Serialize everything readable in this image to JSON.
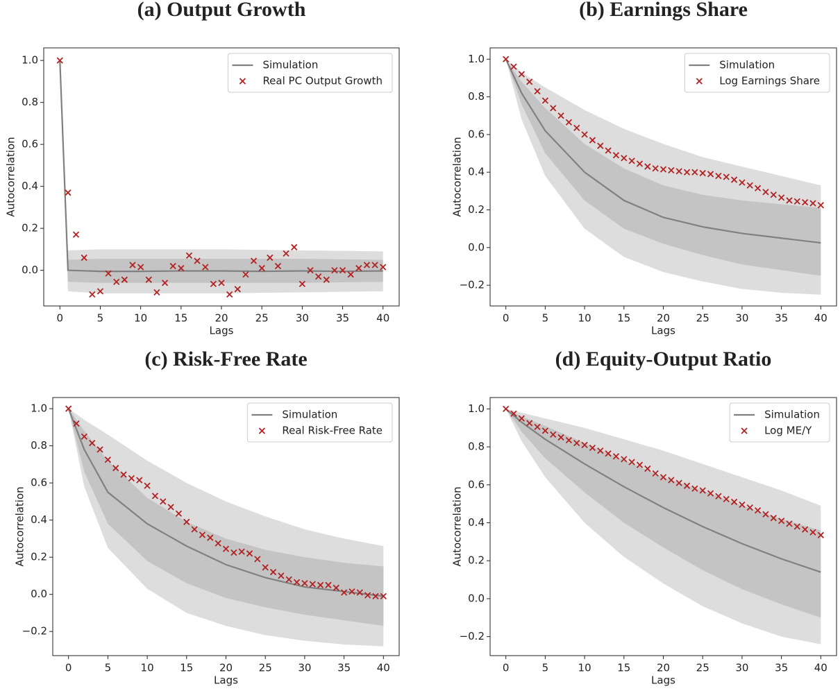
{
  "chart_data": [
    {
      "type": "line",
      "title": "(a) Output Growth",
      "xlabel": "Lags",
      "ylabel": "Autocorrelation",
      "xlim": [
        -2,
        42
      ],
      "ylim": [
        -0.17,
        1.06
      ],
      "xticks": [
        0,
        5,
        10,
        15,
        20,
        25,
        30,
        35,
        40
      ],
      "yticks": [
        {
          "value": 0,
          "label": "0.0"
        },
        {
          "value": 0.2,
          "label": "0.2"
        },
        {
          "value": 0.4,
          "label": "0.4"
        },
        {
          "value": 0.6,
          "label": "0.6"
        },
        {
          "value": 0.8,
          "label": "0.8"
        },
        {
          "value": 1,
          "label": "1.0"
        }
      ],
      "grid": false,
      "legend": "upper right",
      "bands": [
        {
          "color": "#dddddd",
          "x": [
            0,
            1,
            5,
            10,
            20,
            30,
            40
          ],
          "upper": [
            1,
            0.095,
            0.1,
            0.1,
            0.1,
            0.095,
            0.09
          ],
          "lower": [
            1,
            -0.1,
            -0.11,
            -0.11,
            -0.11,
            -0.105,
            -0.1
          ]
        },
        {
          "color": "#c4c4c4",
          "x": [
            0,
            1,
            5,
            10,
            20,
            30,
            40
          ],
          "upper": [
            1,
            0.05,
            0.055,
            0.055,
            0.055,
            0.055,
            0.05
          ],
          "lower": [
            1,
            -0.055,
            -0.06,
            -0.06,
            -0.06,
            -0.06,
            -0.055
          ]
        }
      ],
      "series": [
        {
          "name": "Simulation",
          "type": "line",
          "color": "#808080",
          "x": [
            0,
            1,
            5,
            10,
            15,
            20,
            25,
            30,
            35,
            40
          ],
          "values": [
            1,
            0,
            -0.005,
            -0.005,
            -0.003,
            -0.003,
            -0.005,
            -0.003,
            -0.005,
            -0.003
          ]
        },
        {
          "name": "Real PC Output Growth",
          "type": "scatter",
          "color": "#b22222",
          "x": [
            0,
            1,
            2,
            3,
            4,
            5,
            6,
            7,
            8,
            9,
            10,
            11,
            12,
            13,
            14,
            15,
            16,
            17,
            18,
            19,
            20,
            21,
            22,
            23,
            24,
            25,
            26,
            27,
            28,
            29,
            30,
            31,
            32,
            33,
            34,
            35,
            36,
            37,
            38,
            39,
            40
          ],
          "values": [
            1.0,
            0.37,
            0.17,
            0.06,
            -0.115,
            -0.1,
            -0.015,
            -0.055,
            -0.045,
            0.025,
            0.015,
            -0.045,
            -0.105,
            -0.06,
            0.02,
            0.01,
            0.07,
            0.045,
            0.015,
            -0.065,
            -0.06,
            -0.115,
            -0.09,
            -0.02,
            0.045,
            0.01,
            0.06,
            0.02,
            0.08,
            0.11,
            -0.065,
            0.0,
            -0.03,
            -0.045,
            0.0,
            0.0,
            -0.02,
            0.01,
            0.025,
            0.025,
            0.015
          ]
        }
      ]
    },
    {
      "type": "line",
      "title": "(b) Earnings Share",
      "xlabel": "Lags",
      "ylabel": "Autocorrelation",
      "xlim": [
        -2,
        42
      ],
      "ylim": [
        -0.31,
        1.06
      ],
      "xticks": [
        0,
        5,
        10,
        15,
        20,
        25,
        30,
        35,
        40
      ],
      "yticks": [
        {
          "value": -0.2,
          "label": "−0.2"
        },
        {
          "value": 0,
          "label": "0.0"
        },
        {
          "value": 0.2,
          "label": "0.2"
        },
        {
          "value": 0.4,
          "label": "0.4"
        },
        {
          "value": 0.6,
          "label": "0.6"
        },
        {
          "value": 0.8,
          "label": "0.8"
        },
        {
          "value": 1,
          "label": "1.0"
        }
      ],
      "grid": false,
      "legend": "upper right",
      "bands": [
        {
          "color": "#dddddd",
          "x": [
            0,
            2,
            5,
            10,
            15,
            20,
            25,
            30,
            35,
            40
          ],
          "upper": [
            1,
            0.93,
            0.85,
            0.73,
            0.63,
            0.55,
            0.48,
            0.43,
            0.38,
            0.33
          ],
          "lower": [
            1,
            0.68,
            0.38,
            0.1,
            -0.05,
            -0.13,
            -0.18,
            -0.22,
            -0.24,
            -0.25
          ]
        },
        {
          "color": "#c4c4c4",
          "x": [
            0,
            2,
            5,
            10,
            15,
            20,
            25,
            30,
            35,
            40
          ],
          "upper": [
            1,
            0.88,
            0.74,
            0.55,
            0.42,
            0.33,
            0.28,
            0.25,
            0.23,
            0.21
          ],
          "lower": [
            1,
            0.76,
            0.5,
            0.25,
            0.1,
            0.02,
            -0.04,
            -0.09,
            -0.12,
            -0.15
          ]
        }
      ],
      "series": [
        {
          "name": "Simulation",
          "type": "line",
          "color": "#808080",
          "x": [
            0,
            2,
            5,
            10,
            15,
            20,
            25,
            30,
            35,
            40
          ],
          "values": [
            1,
            0.82,
            0.62,
            0.4,
            0.25,
            0.16,
            0.11,
            0.075,
            0.05,
            0.025
          ]
        },
        {
          "name": "Log Earnings Share",
          "type": "scatter",
          "color": "#b22222",
          "x": [
            0,
            1,
            2,
            3,
            4,
            5,
            6,
            7,
            8,
            9,
            10,
            11,
            12,
            13,
            14,
            15,
            16,
            17,
            18,
            19,
            20,
            21,
            22,
            23,
            24,
            25,
            26,
            27,
            28,
            29,
            30,
            31,
            32,
            33,
            34,
            35,
            36,
            37,
            38,
            39,
            40
          ],
          "values": [
            1.0,
            0.96,
            0.92,
            0.88,
            0.83,
            0.78,
            0.74,
            0.7,
            0.665,
            0.635,
            0.6,
            0.57,
            0.54,
            0.515,
            0.49,
            0.475,
            0.46,
            0.445,
            0.43,
            0.42,
            0.415,
            0.41,
            0.405,
            0.4,
            0.4,
            0.395,
            0.39,
            0.38,
            0.375,
            0.36,
            0.345,
            0.33,
            0.315,
            0.295,
            0.28,
            0.265,
            0.25,
            0.245,
            0.24,
            0.235,
            0.225
          ]
        }
      ]
    },
    {
      "type": "line",
      "title": "(c) Risk-Free Rate",
      "xlabel": "Lags",
      "ylabel": "Autocorrelation",
      "xlim": [
        -2,
        42
      ],
      "ylim": [
        -0.33,
        1.06
      ],
      "xticks": [
        0,
        5,
        10,
        15,
        20,
        25,
        30,
        35,
        40
      ],
      "yticks": [
        {
          "value": -0.2,
          "label": "−0.2"
        },
        {
          "value": 0,
          "label": "0.0"
        },
        {
          "value": 0.2,
          "label": "0.2"
        },
        {
          "value": 0.4,
          "label": "0.4"
        },
        {
          "value": 0.6,
          "label": "0.6"
        },
        {
          "value": 0.8,
          "label": "0.8"
        },
        {
          "value": 1,
          "label": "1.0"
        }
      ],
      "grid": false,
      "legend": "upper right",
      "bands": [
        {
          "color": "#dddddd",
          "x": [
            0,
            2,
            5,
            10,
            15,
            20,
            25,
            30,
            35,
            40
          ],
          "upper": [
            1,
            0.94,
            0.86,
            0.72,
            0.6,
            0.5,
            0.42,
            0.35,
            0.3,
            0.26
          ],
          "lower": [
            1,
            0.58,
            0.25,
            0.03,
            -0.1,
            -0.17,
            -0.22,
            -0.25,
            -0.27,
            -0.28
          ]
        },
        {
          "color": "#c4c4c4",
          "x": [
            0,
            2,
            5,
            10,
            15,
            20,
            25,
            30,
            35,
            40
          ],
          "upper": [
            1,
            0.88,
            0.72,
            0.52,
            0.39,
            0.3,
            0.24,
            0.2,
            0.17,
            0.15
          ],
          "lower": [
            1,
            0.66,
            0.38,
            0.18,
            0.06,
            -0.02,
            -0.07,
            -0.11,
            -0.14,
            -0.17
          ]
        }
      ],
      "series": [
        {
          "name": "Simulation",
          "type": "line",
          "color": "#808080",
          "x": [
            0,
            2,
            5,
            10,
            15,
            20,
            25,
            30,
            35,
            40
          ],
          "values": [
            1,
            0.78,
            0.55,
            0.38,
            0.26,
            0.16,
            0.09,
            0.04,
            0.015,
            -0.01
          ]
        },
        {
          "name": "Real Risk-Free Rate",
          "type": "scatter",
          "color": "#b22222",
          "x": [
            0,
            1,
            2,
            3,
            4,
            5,
            6,
            7,
            8,
            9,
            10,
            11,
            12,
            13,
            14,
            15,
            16,
            17,
            18,
            19,
            20,
            21,
            22,
            23,
            24,
            25,
            26,
            27,
            28,
            29,
            30,
            31,
            32,
            33,
            34,
            35,
            36,
            37,
            38,
            39,
            40
          ],
          "values": [
            1.0,
            0.92,
            0.85,
            0.815,
            0.78,
            0.725,
            0.68,
            0.645,
            0.625,
            0.615,
            0.585,
            0.53,
            0.5,
            0.47,
            0.435,
            0.39,
            0.35,
            0.32,
            0.305,
            0.275,
            0.245,
            0.225,
            0.23,
            0.22,
            0.19,
            0.145,
            0.12,
            0.1,
            0.08,
            0.065,
            0.06,
            0.055,
            0.05,
            0.05,
            0.035,
            0.01,
            0.015,
            0.01,
            -0.005,
            -0.01,
            -0.01
          ]
        }
      ]
    },
    {
      "type": "line",
      "title": "(d) Equity-Output Ratio",
      "xlabel": "Lags",
      "ylabel": "Autocorrelation",
      "xlim": [
        -2,
        42
      ],
      "ylim": [
        -0.3,
        1.06
      ],
      "xticks": [
        0,
        5,
        10,
        15,
        20,
        25,
        30,
        35,
        40
      ],
      "yticks": [
        {
          "value": -0.2,
          "label": "−0.2"
        },
        {
          "value": 0,
          "label": "0.0"
        },
        {
          "value": 0.2,
          "label": "0.2"
        },
        {
          "value": 0.4,
          "label": "0.4"
        },
        {
          "value": 0.6,
          "label": "0.6"
        },
        {
          "value": 0.8,
          "label": "0.8"
        },
        {
          "value": 1,
          "label": "1.0"
        }
      ],
      "grid": false,
      "legend": "upper right",
      "bands": [
        {
          "color": "#dddddd",
          "x": [
            0,
            2,
            5,
            10,
            15,
            20,
            25,
            30,
            35,
            40
          ],
          "upper": [
            1,
            0.98,
            0.95,
            0.9,
            0.84,
            0.78,
            0.71,
            0.64,
            0.57,
            0.49
          ],
          "lower": [
            1,
            0.83,
            0.64,
            0.4,
            0.22,
            0.08,
            -0.04,
            -0.13,
            -0.2,
            -0.24
          ]
        },
        {
          "color": "#c4c4c4",
          "x": [
            0,
            2,
            5,
            10,
            15,
            20,
            25,
            30,
            35,
            40
          ],
          "upper": [
            1,
            0.96,
            0.91,
            0.82,
            0.73,
            0.64,
            0.57,
            0.49,
            0.42,
            0.36
          ],
          "lower": [
            1,
            0.88,
            0.74,
            0.56,
            0.4,
            0.27,
            0.15,
            0.05,
            -0.03,
            -0.1
          ]
        }
      ],
      "series": [
        {
          "name": "Simulation",
          "type": "line",
          "color": "#808080",
          "x": [
            0,
            2,
            5,
            10,
            15,
            20,
            25,
            30,
            35,
            40
          ],
          "values": [
            1,
            0.93,
            0.84,
            0.71,
            0.59,
            0.48,
            0.38,
            0.29,
            0.21,
            0.14
          ]
        },
        {
          "name": "Log ME/Y",
          "type": "scatter",
          "color": "#b22222",
          "x": [
            0,
            1,
            2,
            3,
            4,
            5,
            6,
            7,
            8,
            9,
            10,
            11,
            12,
            13,
            14,
            15,
            16,
            17,
            18,
            19,
            20,
            21,
            22,
            23,
            24,
            25,
            26,
            27,
            28,
            29,
            30,
            31,
            32,
            33,
            34,
            35,
            36,
            37,
            38,
            39,
            40
          ],
          "values": [
            1.0,
            0.975,
            0.95,
            0.925,
            0.905,
            0.885,
            0.865,
            0.85,
            0.835,
            0.82,
            0.81,
            0.795,
            0.78,
            0.765,
            0.75,
            0.735,
            0.72,
            0.705,
            0.685,
            0.66,
            0.64,
            0.625,
            0.61,
            0.595,
            0.58,
            0.57,
            0.555,
            0.54,
            0.525,
            0.51,
            0.495,
            0.48,
            0.465,
            0.445,
            0.425,
            0.41,
            0.395,
            0.38,
            0.365,
            0.35,
            0.335
          ]
        }
      ]
    }
  ]
}
